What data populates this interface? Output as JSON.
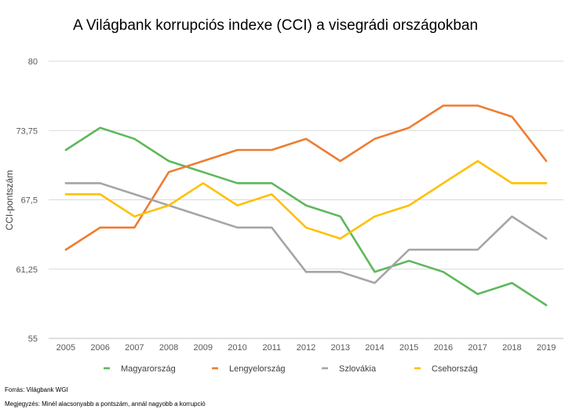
{
  "chart_data": {
    "type": "line",
    "title": "A Világbank korrupciós indexe (CCI) a visegrádi országokban",
    "ylabel": "CCI-pontszám",
    "xlabel": "",
    "x": [
      2005,
      2006,
      2007,
      2008,
      2009,
      2010,
      2011,
      2012,
      2013,
      2014,
      2015,
      2016,
      2017,
      2018,
      2019
    ],
    "ylim": [
      55,
      80
    ],
    "yticks": [
      55,
      61.25,
      67.5,
      73.75,
      80
    ],
    "ytick_labels": [
      "55",
      "61,25",
      "67,5",
      "73,75",
      "80"
    ],
    "grid": true,
    "legend_position": "bottom",
    "series": [
      {
        "name": "Magyarország",
        "color": "#5cb85c",
        "values": [
          72,
          74,
          73,
          71,
          70,
          69,
          69,
          67,
          66,
          61,
          62,
          61,
          59,
          60,
          58
        ]
      },
      {
        "name": "Lengyelország",
        "color": "#ed7d31",
        "values": [
          63,
          65,
          65,
          70,
          71,
          72,
          72,
          73,
          71,
          73,
          74,
          76,
          76,
          75,
          71
        ]
      },
      {
        "name": "Szlovákia",
        "color": "#a5a5a5",
        "values": [
          69,
          69,
          68,
          67,
          66,
          65,
          65,
          61,
          61,
          60,
          63,
          63,
          63,
          66,
          64
        ]
      },
      {
        "name": "Csehország",
        "color": "#ffc000",
        "values": [
          68,
          68,
          66,
          67,
          69,
          67,
          68,
          65,
          64,
          66,
          67,
          69,
          71,
          69,
          69
        ]
      }
    ]
  },
  "notes": {
    "source": "Forrás: Világbank WGI",
    "remark": "Megjegyzés: Minél alacsonyabb a pontszám, annál nagyobb a korrupció"
  }
}
